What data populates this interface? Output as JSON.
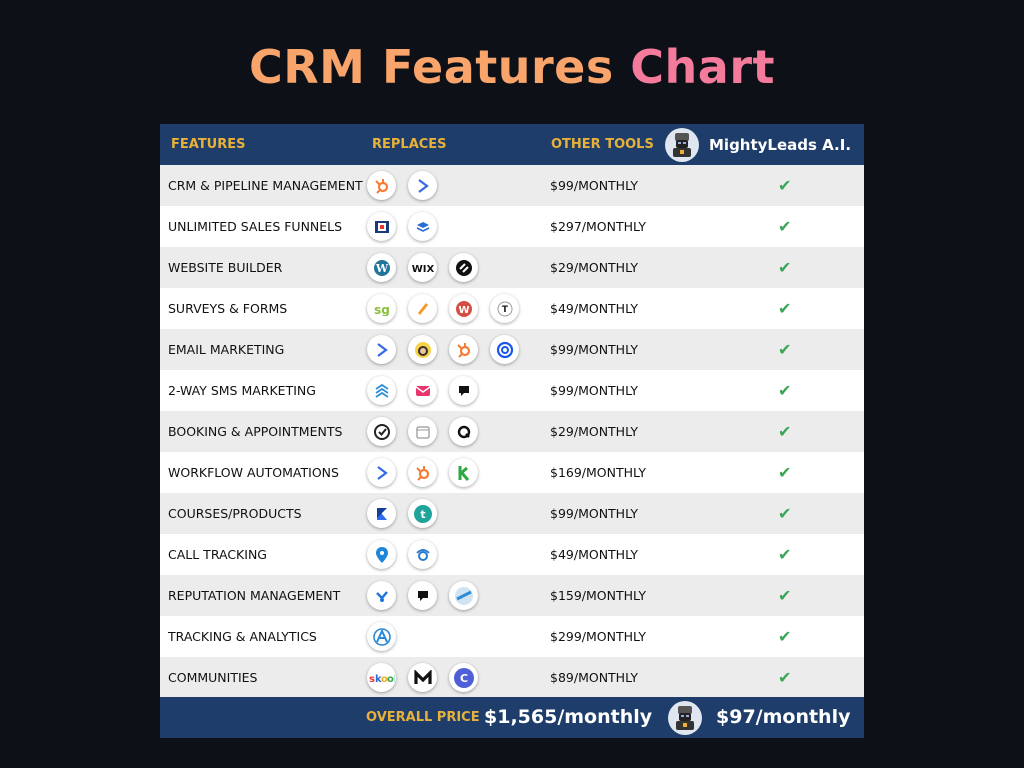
{
  "title": {
    "part1": "CRM Features",
    "part2": "Chart"
  },
  "header": {
    "features": "FEATURES",
    "replaces": "REPLACES",
    "other_tools": "OTHER TOOLS",
    "brand": "MightyLeads A.I."
  },
  "rows": [
    {
      "feature": "CRM & PIPELINE MANAGEMENT",
      "price": "$99/MONTHLY",
      "icons": [
        "hubspot-icon",
        "activecampaign-icon"
      ]
    },
    {
      "feature": "UNLIMITED SALES FUNNELS",
      "price": "$297/MONTHLY",
      "icons": [
        "clickfunnels-icon",
        "leadpages-icon"
      ]
    },
    {
      "feature": "WEBSITE BUILDER",
      "price": "$29/MONTHLY",
      "icons": [
        "wordpress-icon",
        "wix-icon",
        "squarespace-icon"
      ]
    },
    {
      "feature": "SURVEYS & FORMS",
      "price": "$49/MONTHLY",
      "icons": [
        "surveygizmo-icon",
        "jotform-icon",
        "wufoo-icon",
        "typeform-icon"
      ]
    },
    {
      "feature": "EMAIL MARKETING",
      "price": "$99/MONTHLY",
      "icons": [
        "activecampaign-icon",
        "mailchimp-icon",
        "hubspot-icon",
        "constantcontact-icon"
      ]
    },
    {
      "feature": "2-WAY SMS MARKETING",
      "price": "$99/MONTHLY",
      "icons": [
        "sms-stack-icon",
        "textmagic-icon",
        "podium-icon"
      ]
    },
    {
      "feature": "BOOKING & APPOINTMENTS",
      "price": "$29/MONTHLY",
      "icons": [
        "calendly-icon",
        "calendar-icon",
        "acuity-icon"
      ]
    },
    {
      "feature": "WORKFLOW AUTOMATIONS",
      "price": "$169/MONTHLY",
      "icons": [
        "activecampaign-icon",
        "hubspot-icon",
        "keap-icon"
      ]
    },
    {
      "feature": "COURSES/PRODUCTS",
      "price": "$99/MONTHLY",
      "icons": [
        "kajabi-icon",
        "teachable-icon"
      ]
    },
    {
      "feature": "CALL TRACKING",
      "price": "$49/MONTHLY",
      "icons": [
        "callrail-icon",
        "calltrackingmetrics-icon"
      ]
    },
    {
      "feature": "REPUTATION MANAGEMENT",
      "price": "$159/MONTHLY",
      "icons": [
        "birdeye-icon",
        "podium-icon",
        "reputation-icon"
      ]
    },
    {
      "feature": "TRACKING & ANALYTICS",
      "price": "$299/MONTHLY",
      "icons": [
        "analytics-icon"
      ]
    },
    {
      "feature": "COMMUNITIES",
      "price": "$89/MONTHLY",
      "icons": [
        "skool-icon",
        "mighty-networks-icon",
        "circle-icon"
      ]
    }
  ],
  "check_glyph": "✔",
  "footer": {
    "label": "OVERALL PRICE",
    "other_total": "$1,565/monthly",
    "mightyleads_total": "$97/monthly"
  },
  "colors": {
    "background": "#0d1117",
    "title_orange": "#f8a46a",
    "title_pink": "#f47b9b",
    "header_blue": "#1e3d6b",
    "header_gold": "#e7b13a",
    "check_green": "#3aa655"
  }
}
